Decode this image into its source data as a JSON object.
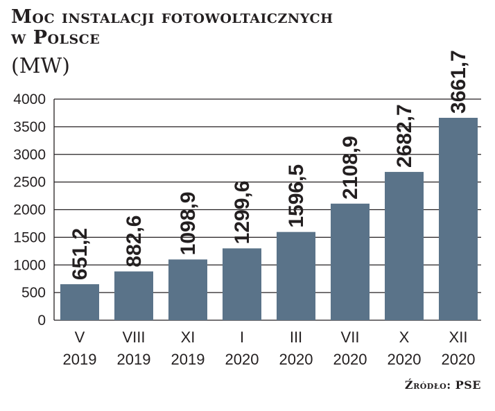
{
  "header": {
    "title_line1": "Moc instalacji fotowoltaicznych",
    "title_line2": "w Polsce",
    "unit": "(MW)"
  },
  "footer": {
    "source": "Źródło: PSE"
  },
  "colors": {
    "bar": "#5a7389",
    "grid": "#231f20",
    "text": "#231f20"
  },
  "chart_data": {
    "type": "bar",
    "title": "Moc instalacji fotowoltaicznych w Polsce",
    "ylabel": "(MW)",
    "xlabel": "",
    "ylim": [
      0,
      4000
    ],
    "yticks": [
      "0",
      "500",
      "1000",
      "1500",
      "2000",
      "2500",
      "3000",
      "3500",
      "4000"
    ],
    "categories": [
      {
        "month": "V",
        "year": "2019"
      },
      {
        "month": "VIII",
        "year": "2019"
      },
      {
        "month": "XI",
        "year": "2019"
      },
      {
        "month": "I",
        "year": "2020"
      },
      {
        "month": "III",
        "year": "2020"
      },
      {
        "month": "VII",
        "year": "2020"
      },
      {
        "month": "X",
        "year": "2020"
      },
      {
        "month": "XII",
        "year": "2020"
      }
    ],
    "values": [
      651.2,
      882.6,
      1098.9,
      1299.6,
      1596.5,
      2108.9,
      2682.7,
      3661.7
    ],
    "value_labels": [
      "651,2",
      "882,6",
      "1098,9",
      "1299,6",
      "1596,5",
      "2108,9",
      "2682,7",
      "3661,7"
    ],
    "grid": true,
    "legend": "none"
  }
}
